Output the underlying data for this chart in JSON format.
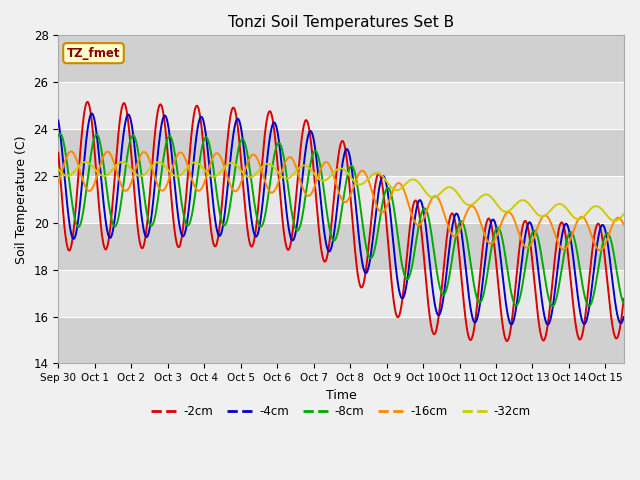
{
  "title": "Tonzi Soil Temperatures Set B",
  "xlabel": "Time",
  "ylabel": "Soil Temperature (C)",
  "ylim": [
    14,
    28
  ],
  "xlim": [
    0,
    15.5
  ],
  "xtick_labels": [
    "Sep 30",
    "Oct 1",
    "Oct 2",
    "Oct 3",
    "Oct 4",
    "Oct 5",
    "Oct 6",
    "Oct 7",
    "Oct 8",
    "Oct 9",
    "Oct 10",
    "Oct 11",
    "Oct 12",
    "Oct 13",
    "Oct 14",
    "Oct 15"
  ],
  "xtick_positions": [
    0,
    1,
    2,
    3,
    4,
    5,
    6,
    7,
    8,
    9,
    10,
    11,
    12,
    13,
    14,
    15
  ],
  "ytick_positions": [
    14,
    16,
    18,
    20,
    22,
    24,
    26,
    28
  ],
  "colors": {
    "-2cm": "#dd0000",
    "-4cm": "#0000cc",
    "-8cm": "#00aa00",
    "-16cm": "#ff8800",
    "-32cm": "#cccc00"
  },
  "annotation_text": "TZ_fmet",
  "bg_light": "#e8e8e8",
  "bg_dark": "#d0d0d0",
  "fig_bg": "#f0f0f0"
}
